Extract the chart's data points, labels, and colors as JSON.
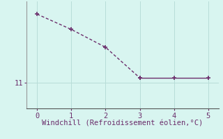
{
  "x": [
    0,
    1,
    2,
    3,
    4,
    5
  ],
  "y": [
    13.7,
    13.1,
    12.4,
    11.2,
    11.2,
    11.2
  ],
  "line_color": "#6b2d6b",
  "marker_color": "#6b2d6b",
  "background_color": "#d8f5f0",
  "grid_color": "#b8ddd8",
  "axis_color": "#999999",
  "xlabel": "Windchill (Refroidissement éolien,°C)",
  "xlabel_color": "#6b2d6b",
  "ylabel_label": "11",
  "ylabel_value": 11,
  "xticks": [
    0,
    1,
    2,
    3,
    4,
    5
  ],
  "yticks": [
    11
  ],
  "xlim": [
    -0.3,
    5.3
  ],
  "ylim": [
    10.0,
    14.2
  ],
  "dashed_segment_end_idx": 3,
  "solid_segment_start_idx": 3,
  "fontsize": 7.5
}
